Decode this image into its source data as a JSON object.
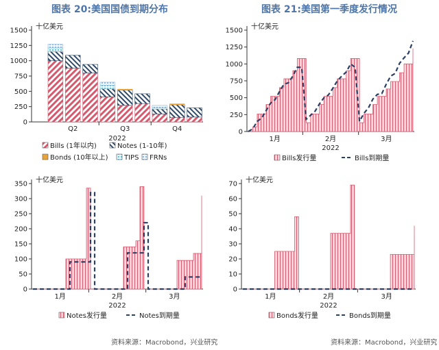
{
  "titles": {
    "left": "图表 20:美国国债到期分布",
    "right": "图表 21:美国第一季度发行情况"
  },
  "source": {
    "left": "资料来源：Macrobond，兴业研究",
    "right": "资料来源：Macrobond，兴业研究"
  },
  "colors": {
    "bills": "#d65a6e",
    "notes": "#2f4a66",
    "bonds": "#e8a33a",
    "tips": "#5fc3d8",
    "frns": "#8bb9df",
    "bills_maturity": "#2a3f63"
  },
  "chart_data": [
    {
      "id": "maturity",
      "type": "bar",
      "stacked": true,
      "unit_label": "十亿美元",
      "ylim": [
        0,
        1500
      ],
      "yticks": [
        0,
        250,
        500,
        750,
        1000,
        1250,
        1500
      ],
      "x_group_labels": [
        "Q2",
        "Q3",
        "Q4"
      ],
      "x_year": "2022",
      "n_bars": 9,
      "series": [
        {
          "name": "Bills (1年以内)",
          "key": "bills",
          "values": [
            1000,
            880,
            800,
            410,
            270,
            300,
            130,
            70,
            80
          ]
        },
        {
          "name": "Notes (1-10年)",
          "key": "notes",
          "values": [
            150,
            210,
            140,
            130,
            250,
            160,
            80,
            210,
            150
          ]
        },
        {
          "name": "Bonds (10年以上)",
          "key": "bonds",
          "values": [
            0,
            0,
            0,
            0,
            15,
            0,
            0,
            15,
            0
          ]
        },
        {
          "name": "TIPS",
          "key": "tips",
          "values": [
            60,
            0,
            0,
            60,
            0,
            0,
            20,
            0,
            0
          ]
        },
        {
          "name": "FRNs",
          "key": "frns",
          "values": [
            60,
            0,
            0,
            50,
            0,
            0,
            40,
            0,
            0
          ]
        }
      ],
      "legend": [
        "Bills (1年以内)",
        "Notes (1-10年)",
        "Bonds (10年以上)",
        "TIPS",
        "FRNs"
      ]
    },
    {
      "id": "bills",
      "type": "area",
      "unit_label": "十亿美元",
      "ylim": [
        0,
        1500
      ],
      "yticks": [
        0,
        250,
        500,
        750,
        1000,
        1250,
        1500
      ],
      "x_labels": [
        "1月",
        "2月",
        "3月"
      ],
      "x_year": "2022",
      "series": [
        {
          "name": "Bills发行量",
          "kind": "area",
          "values": [
            0,
            70,
            260,
            260,
            400,
            520,
            520,
            650,
            780,
            780,
            900,
            1080,
            1080,
            130,
            260,
            260,
            400,
            520,
            520,
            650,
            780,
            780,
            900,
            1080,
            1080,
            130,
            260,
            260,
            400,
            520,
            520,
            630,
            740,
            740,
            870,
            1000,
            1000,
            1230
          ]
        },
        {
          "name": "Bills到期量",
          "kind": "line",
          "values": [
            0,
            40,
            150,
            200,
            310,
            420,
            470,
            590,
            700,
            720,
            820,
            950,
            950,
            180,
            240,
            300,
            410,
            500,
            540,
            640,
            750,
            820,
            880,
            1000,
            950,
            150,
            270,
            350,
            480,
            550,
            560,
            700,
            820,
            860,
            1010,
            1090,
            1160,
            1340
          ]
        }
      ],
      "legend": [
        "Bills发行量",
        "Bills到期量"
      ]
    },
    {
      "id": "notes",
      "type": "area",
      "unit_label": "十亿美元",
      "ylim": [
        0,
        350
      ],
      "yticks": [
        0,
        50,
        100,
        150,
        200,
        250,
        300,
        350
      ],
      "x_labels": [
        "1月",
        "2月",
        "3月"
      ],
      "x_year": "2022",
      "series": [
        {
          "name": "Notes发行量",
          "kind": "area",
          "values": [
            0,
            0,
            0,
            0,
            0,
            0,
            0,
            0,
            100,
            100,
            100,
            100,
            100,
            335,
            0,
            0,
            0,
            0,
            0,
            0,
            0,
            0,
            140,
            140,
            140,
            160,
            340,
            0,
            0,
            0,
            0,
            0,
            0,
            0,
            0,
            95,
            95,
            95,
            95,
            118,
            118,
            310
          ]
        },
        {
          "name": "Notes到期量",
          "kind": "line",
          "values": [
            0,
            0,
            0,
            0,
            0,
            0,
            0,
            0,
            0,
            90,
            90,
            90,
            90,
            90,
            320,
            0,
            0,
            0,
            0,
            0,
            0,
            0,
            0,
            120,
            120,
            120,
            120,
            220,
            0,
            0,
            0,
            0,
            0,
            0,
            0,
            0,
            0,
            40,
            40,
            40,
            40,
            40
          ]
        }
      ],
      "legend": [
        "Notes发行量",
        "Notes到期量"
      ]
    },
    {
      "id": "bonds",
      "type": "area",
      "unit_label": "十亿美元",
      "ylim": [
        0,
        70
      ],
      "yticks": [
        0,
        10,
        20,
        30,
        40,
        50,
        60,
        70
      ],
      "x_labels": [
        "1月",
        "2月",
        "3月"
      ],
      "x_year": "2022",
      "series": [
        {
          "name": "Bonds发行量",
          "kind": "area",
          "values": [
            0,
            0,
            0,
            0,
            0,
            0,
            0,
            0,
            25,
            25,
            25,
            25,
            25,
            48,
            0,
            0,
            0,
            0,
            0,
            0,
            0,
            0,
            37,
            37,
            37,
            37,
            37,
            69,
            0,
            0,
            0,
            0,
            0,
            0,
            0,
            0,
            0,
            23,
            23,
            23,
            23,
            23,
            23,
            42
          ]
        },
        {
          "name": "Bonds到期量",
          "kind": "line",
          "values": [
            0,
            0,
            0,
            0,
            0,
            0,
            0,
            0,
            0,
            0,
            0,
            0,
            0,
            0,
            0,
            0,
            0,
            0,
            0,
            0,
            0,
            0,
            0,
            0,
            0,
            0,
            0,
            0,
            0,
            0,
            0,
            0,
            0,
            0,
            0,
            0,
            0,
            0,
            0,
            0,
            0,
            0,
            0,
            0
          ]
        }
      ],
      "legend": [
        "Bonds发行量",
        "Bonds到期量"
      ]
    }
  ]
}
